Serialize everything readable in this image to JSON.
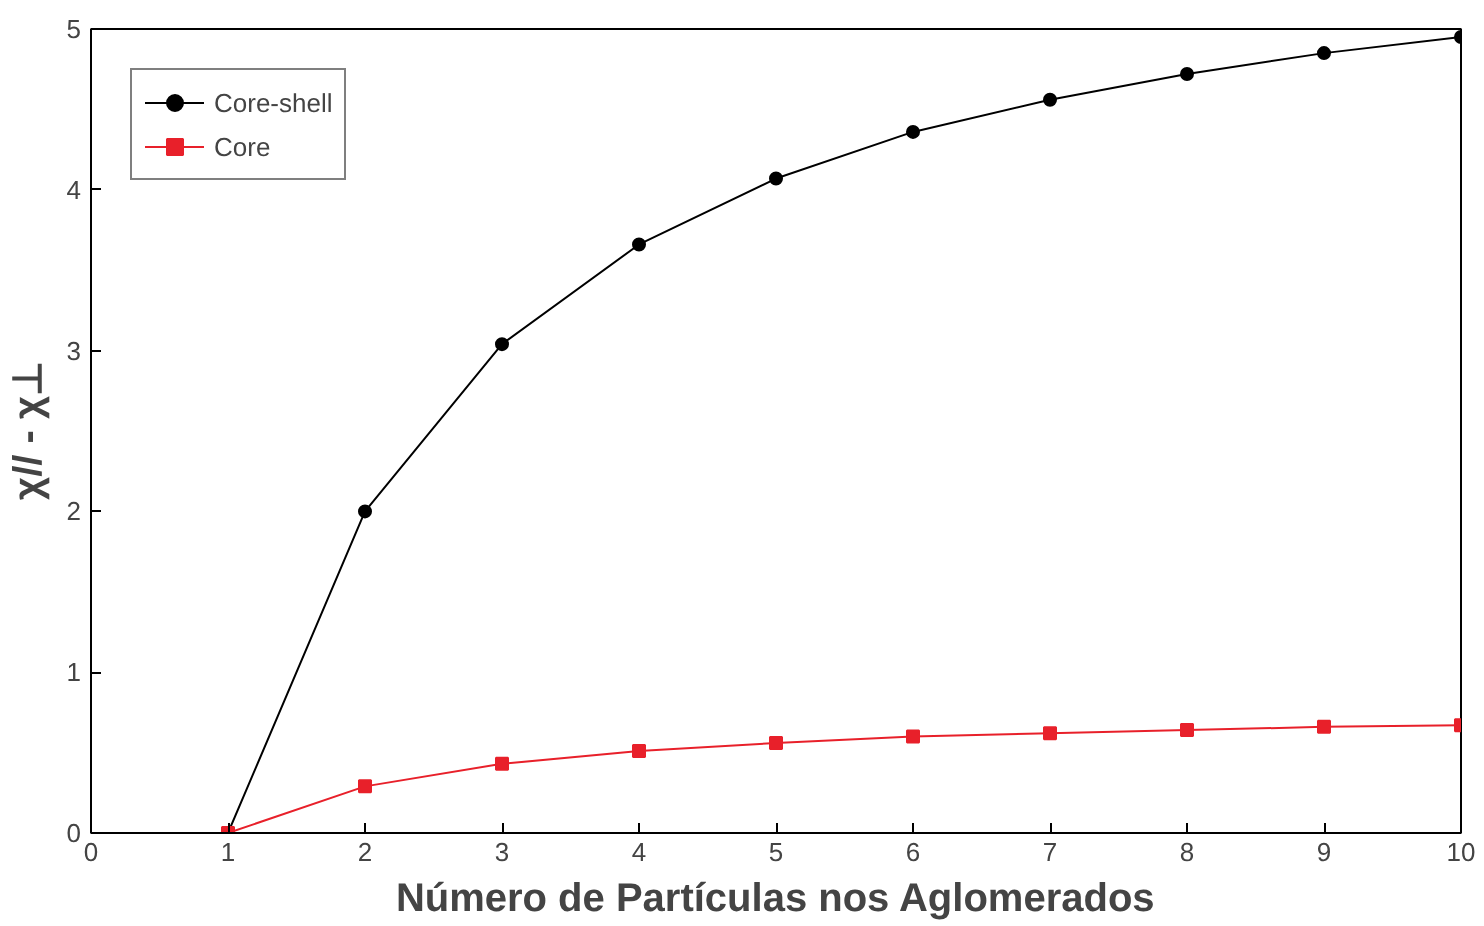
{
  "chart_data": {
    "type": "line",
    "xlabel": "Número de Partículas nos Aglomerados",
    "ylabel": "χ// - χ⊥",
    "x": [
      1,
      2,
      3,
      4,
      5,
      6,
      7,
      8,
      9,
      10
    ],
    "series": [
      {
        "name": "Core-shell",
        "color": "#000000",
        "marker": "circle",
        "values": [
          0,
          2.0,
          3.04,
          3.66,
          4.07,
          4.36,
          4.56,
          4.72,
          4.85,
          4.95
        ]
      },
      {
        "name": "Core",
        "color": "#e8202a",
        "marker": "square",
        "values": [
          0,
          0.29,
          0.43,
          0.51,
          0.56,
          0.6,
          0.62,
          0.64,
          0.66,
          0.67
        ]
      }
    ],
    "xlim": [
      0,
      10
    ],
    "ylim": [
      0,
      5
    ],
    "xticks": [
      0,
      1,
      2,
      3,
      4,
      5,
      6,
      7,
      8,
      9,
      10
    ],
    "yticks": [
      0,
      1,
      2,
      3,
      4,
      5
    ],
    "grid": false,
    "legend": "top left",
    "line_style": "solid"
  }
}
